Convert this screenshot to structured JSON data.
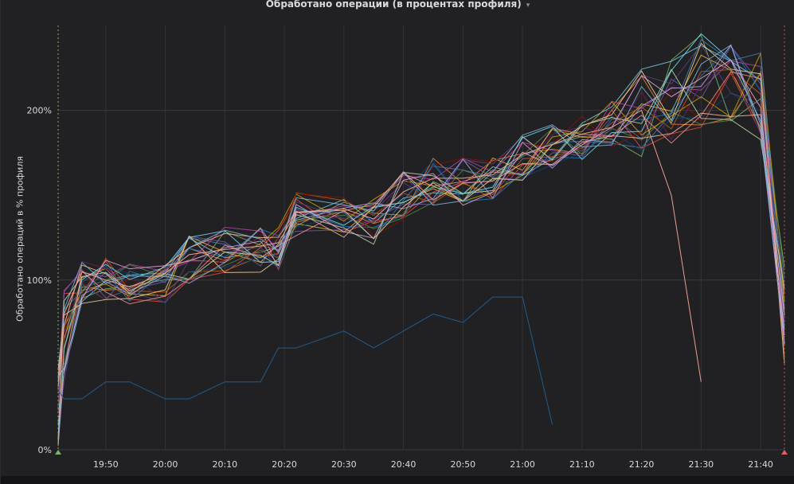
{
  "panel": {
    "title": "Обработано операции (в процентах профиля)",
    "title_caret": "▾"
  },
  "chart_data": {
    "type": "line",
    "title": "Обработано операции (в процентах профиля)",
    "xlabel": "",
    "ylabel": "Обработано операций в % профиля",
    "x_tick_labels": [
      "19:50",
      "20:00",
      "20:10",
      "20:20",
      "20:30",
      "20:40",
      "20:50",
      "21:00",
      "21:10",
      "21:20",
      "21:30",
      "21:40"
    ],
    "y_tick_labels": [
      "0%",
      "100%",
      "200%"
    ],
    "x_range": [
      "19:42",
      "21:44"
    ],
    "ylim": [
      0,
      250
    ],
    "grid": true,
    "legend": "none",
    "series_count": 24,
    "x": [
      "19:42",
      "19:43",
      "19:46",
      "19:50",
      "19:54",
      "20:00",
      "20:04",
      "20:10",
      "20:16",
      "20:19",
      "20:22",
      "20:30",
      "20:35",
      "20:40",
      "20:45",
      "20:50",
      "20:55",
      "21:00",
      "21:05",
      "21:10",
      "21:15",
      "21:20",
      "21:25",
      "21:30",
      "21:35",
      "21:40",
      "21:44"
    ],
    "median_percent": [
      25,
      70,
      100,
      102,
      98,
      100,
      112,
      118,
      118,
      120,
      138,
      138,
      135,
      150,
      158,
      158,
      160,
      172,
      178,
      185,
      192,
      198,
      205,
      218,
      215,
      210,
      80
    ],
    "colors": [
      "#7eb26d",
      "#eab839",
      "#6ed0e0",
      "#ef843c",
      "#e24d42",
      "#1f78c1",
      "#ba43a9",
      "#705da0",
      "#508642",
      "#cca300",
      "#447ebc",
      "#c15c17",
      "#890f02",
      "#0a437c",
      "#6d1f62",
      "#584477",
      "#b7dbab",
      "#f4d598",
      "#70dbed",
      "#f9ba8f",
      "#f29191",
      "#82b5d8",
      "#e5a8e2",
      "#aea2e0"
    ],
    "notable_series": [
      {
        "color": "#1f5c8f",
        "values": [
          35,
          30,
          30,
          40,
          40,
          30,
          30,
          40,
          40,
          60,
          60,
          70,
          60,
          70,
          80,
          75,
          90,
          90,
          15,
          null,
          null,
          null,
          null,
          null,
          null,
          null,
          null
        ]
      },
      {
        "color": "#e8a090",
        "values": [
          40,
          80,
          105,
          100,
          96,
          104,
          115,
          118,
          120,
          122,
          140,
          142,
          136,
          152,
          160,
          160,
          162,
          174,
          180,
          186,
          190,
          200,
          150,
          40,
          null,
          null,
          null
        ]
      }
    ]
  }
}
